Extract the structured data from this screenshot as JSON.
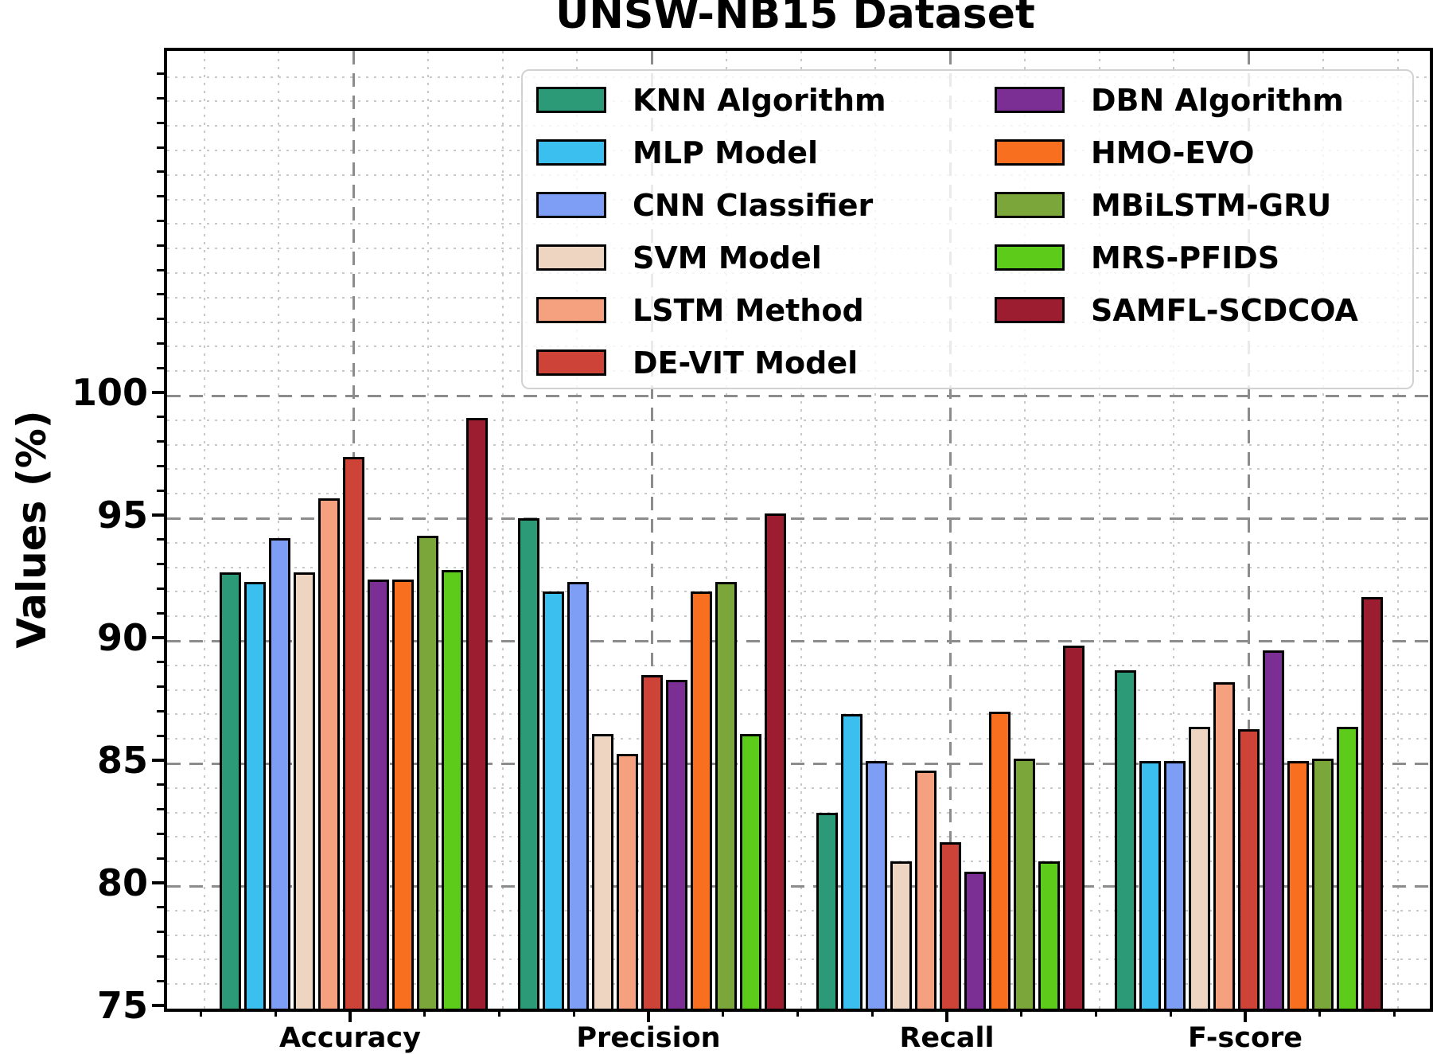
{
  "chart_data": {
    "type": "bar",
    "title": "UNSW-NB15 Dataset",
    "ylabel": "Values (%)",
    "xlabel": "",
    "categories": [
      "Accuracy",
      "Precision",
      "Recall",
      "F-score"
    ],
    "y_ticks": [
      75,
      80,
      85,
      90,
      95,
      100
    ],
    "ylim": [
      75,
      114
    ],
    "grid": "major dashed gray + minor dotted light-gray, both axes",
    "legend_position": "upper center inside plot, 2 columns, semi-transparent white box",
    "bar_edge_color": "#000000",
    "series": [
      {
        "name": "KNN Algorithm",
        "color": "#2d9a77",
        "values": [
          92.8,
          95.0,
          83.0,
          88.8
        ]
      },
      {
        "name": "MLP Model",
        "color": "#3bbfee",
        "values": [
          92.4,
          92.0,
          87.0,
          85.1
        ]
      },
      {
        "name": "CNN Classifier",
        "color": "#7e9df5",
        "values": [
          94.2,
          92.4,
          85.1,
          85.1
        ]
      },
      {
        "name": "SVM Model",
        "color": "#eed5c1",
        "values": [
          92.8,
          86.2,
          81.0,
          86.5
        ]
      },
      {
        "name": "LSTM Method",
        "color": "#f5a180",
        "values": [
          95.8,
          85.4,
          84.7,
          88.3
        ]
      },
      {
        "name": "DE-VIT Model",
        "color": "#ce4338",
        "values": [
          97.5,
          88.6,
          81.8,
          86.4
        ]
      },
      {
        "name": "DBN Algorithm",
        "color": "#7b2f95",
        "values": [
          92.5,
          88.4,
          80.6,
          89.6
        ]
      },
      {
        "name": "HMO-EVO",
        "color": "#f96f20",
        "values": [
          92.5,
          92.0,
          87.1,
          85.1
        ]
      },
      {
        "name": "MBiLSTM-GRU",
        "color": "#7ba63a",
        "values": [
          94.3,
          92.4,
          85.2,
          85.2
        ]
      },
      {
        "name": "MRS-PFIDS",
        "color": "#5ccb1a",
        "values": [
          92.9,
          86.2,
          81.0,
          86.5
        ]
      },
      {
        "name": "SAMFL-SCDCOA",
        "color": "#9c1d2f",
        "values": [
          99.1,
          95.2,
          89.8,
          91.8
        ]
      }
    ]
  }
}
